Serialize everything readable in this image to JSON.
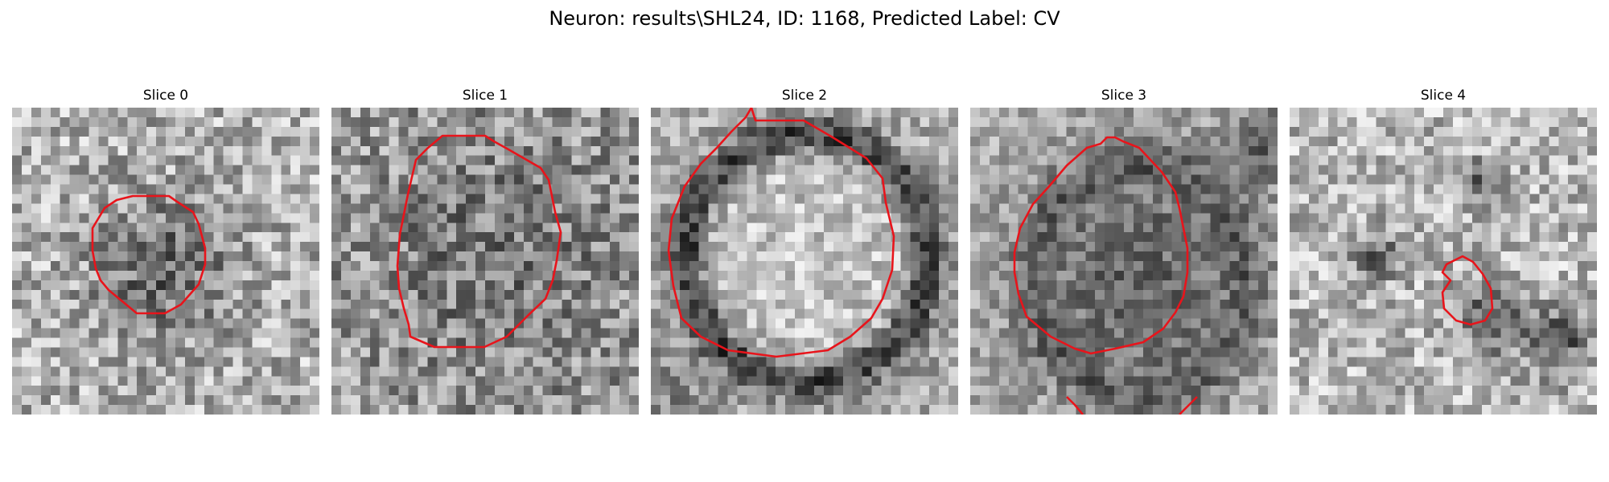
{
  "figure": {
    "title": "Neuron: results\\SHL24, ID: 1168, Predicted Label: CV"
  },
  "panels": [
    {
      "title": "Slice 0"
    },
    {
      "title": "Slice 1"
    },
    {
      "title": "Slice 2"
    },
    {
      "title": "Slice 3"
    },
    {
      "title": "Slice 4"
    }
  ],
  "colors": {
    "contour": "#e8141b"
  }
}
